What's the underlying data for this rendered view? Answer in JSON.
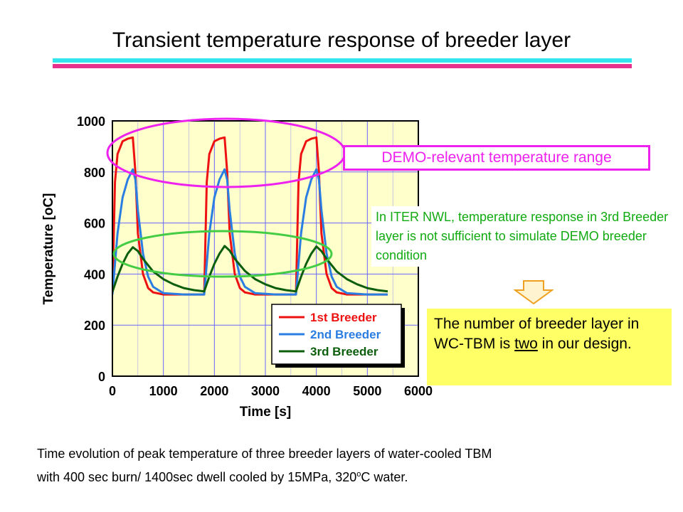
{
  "title": "Transient temperature response of breeder layer",
  "callout_range": "DEMO-relevant temperature range",
  "note": "In ITER NWL, temperature response in 3rd Breeder layer is not sufficient to simulate DEMO breeder condition",
  "conclusion": {
    "before": "The number of breeder layer in WC-TBM is ",
    "emph": "two",
    "after": " in our design."
  },
  "caption": {
    "line1": "Time evolution of peak temperature of three breeder layers of water-cooled TBM",
    "line2_before": "with 400 sec burn/ 1400sec dwell cooled by 15MPa, 320",
    "line2_sup": "o",
    "line2_after": "C water."
  },
  "colors": {
    "plot_bg": "#ffffcc",
    "grid": "#6666ff",
    "ellipse_top": "#ee22ee",
    "ellipse_bottom": "#44cc44"
  },
  "chart_data": {
    "type": "line",
    "xlabel": "Time [s]",
    "ylabel": "Temperature [oC]",
    "xlim": [
      0,
      6000
    ],
    "ylim": [
      0,
      1000
    ],
    "xticks": [
      "0",
      "1000",
      "2000",
      "3000",
      "4000",
      "5000",
      "6000"
    ],
    "yticks": [
      "0",
      "200",
      "400",
      "600",
      "800",
      "1000"
    ],
    "grid": true,
    "legend_position": "bottom-right",
    "series": [
      {
        "name": "1st Breeder",
        "color": "#ee1111",
        "x": [
          0,
          50,
          100,
          200,
          300,
          400,
          450,
          500,
          600,
          700,
          800,
          1000,
          1400,
          1800,
          1850,
          1900,
          2000,
          2100,
          2200,
          2250,
          2300,
          2400,
          2500,
          2600,
          2800,
          3200,
          3600,
          3650,
          3700,
          3800,
          3900,
          4000,
          4050,
          4100,
          4200,
          4300,
          4400,
          4600,
          5000,
          5400
        ],
        "y": [
          320,
          760,
          870,
          920,
          930,
          935,
          800,
          560,
          400,
          345,
          328,
          320,
          320,
          320,
          760,
          870,
          920,
          930,
          935,
          800,
          560,
          400,
          345,
          328,
          320,
          320,
          320,
          760,
          870,
          920,
          930,
          935,
          800,
          560,
          400,
          345,
          328,
          320,
          320,
          320
        ]
      },
      {
        "name": "2nd Breeder",
        "color": "#2a7de1",
        "x": [
          0,
          100,
          200,
          300,
          400,
          450,
          500,
          600,
          700,
          800,
          1000,
          1400,
          1800,
          1900,
          2000,
          2100,
          2200,
          2250,
          2300,
          2400,
          2500,
          2600,
          2800,
          3200,
          3600,
          3700,
          3800,
          3900,
          4000,
          4050,
          4100,
          4200,
          4300,
          4400,
          4600,
          5000,
          5400
        ],
        "y": [
          320,
          560,
          700,
          770,
          810,
          770,
          650,
          480,
          390,
          350,
          325,
          320,
          320,
          560,
          700,
          770,
          810,
          770,
          650,
          480,
          390,
          350,
          325,
          320,
          320,
          560,
          700,
          770,
          810,
          770,
          650,
          480,
          390,
          350,
          325,
          320,
          320
        ]
      },
      {
        "name": "3rd Breeder",
        "color": "#0b5e0b",
        "x": [
          0,
          100,
          200,
          300,
          400,
          500,
          600,
          800,
          1000,
          1200,
          1400,
          1600,
          1800,
          1900,
          2000,
          2100,
          2200,
          2300,
          2400,
          2600,
          2800,
          3000,
          3200,
          3400,
          3600,
          3700,
          3800,
          3900,
          4000,
          4100,
          4200,
          4400,
          4600,
          4800,
          5000,
          5200,
          5400
        ],
        "y": [
          330,
          390,
          440,
          480,
          505,
          490,
          460,
          410,
          380,
          360,
          345,
          337,
          332,
          390,
          440,
          480,
          510,
          492,
          460,
          412,
          380,
          360,
          345,
          337,
          332,
          390,
          440,
          480,
          508,
          490,
          460,
          410,
          380,
          360,
          345,
          337,
          332
        ]
      }
    ]
  }
}
